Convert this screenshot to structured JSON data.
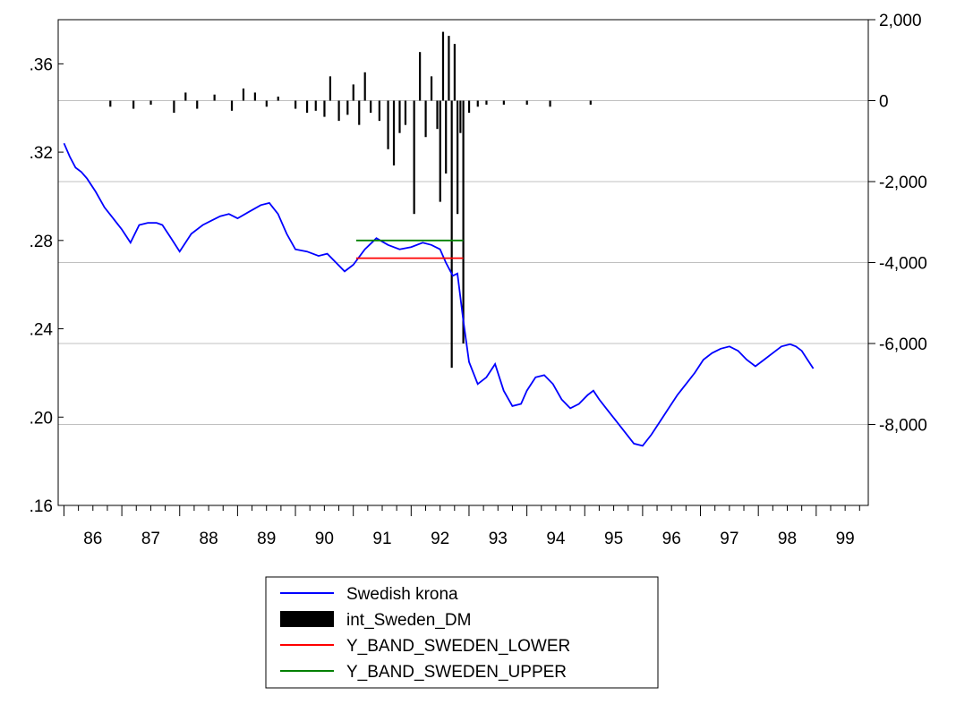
{
  "chart_data": {
    "type": "line",
    "title": "",
    "xlabel": "",
    "x_tick_labels": [
      "86",
      "87",
      "88",
      "89",
      "90",
      "91",
      "92",
      "93",
      "94",
      "95",
      "96",
      "97",
      "98",
      "99"
    ],
    "x_range": [
      1985.9,
      1999.9
    ],
    "left_axis": {
      "label": "",
      "range": [
        0.16,
        0.38
      ],
      "tick_labels": [
        ".16",
        ".20",
        ".24",
        ".28",
        ".32",
        ".36"
      ],
      "tick_values": [
        0.16,
        0.2,
        0.24,
        0.28,
        0.32,
        0.36
      ]
    },
    "right_axis": {
      "label": "",
      "range": [
        -10000,
        2000
      ],
      "tick_labels": [
        "2,000",
        "0",
        "-2,000",
        "-4,000",
        "-6,000",
        "-8,000"
      ],
      "tick_values": [
        2000,
        0,
        -2000,
        -4000,
        -6000,
        -8000
      ]
    },
    "grid": "horizontal",
    "series": [
      {
        "name": "Swedish krona",
        "type": "line",
        "axis": "left",
        "color": "#0000ff",
        "x": [
          1986.0,
          1986.1,
          1986.2,
          1986.3,
          1986.4,
          1986.55,
          1986.7,
          1986.85,
          1987.0,
          1987.15,
          1987.3,
          1987.45,
          1987.6,
          1987.7,
          1987.85,
          1988.0,
          1988.2,
          1988.4,
          1988.55,
          1988.7,
          1988.85,
          1989.0,
          1989.2,
          1989.4,
          1989.55,
          1989.7,
          1989.85,
          1990.0,
          1990.2,
          1990.4,
          1990.55,
          1990.7,
          1990.85,
          1991.0,
          1991.2,
          1991.4,
          1991.6,
          1991.8,
          1992.0,
          1992.2,
          1992.35,
          1992.5,
          1992.6,
          1992.68,
          1992.72,
          1992.8,
          1992.9,
          1993.0,
          1993.15,
          1993.3,
          1993.45,
          1993.6,
          1993.75,
          1993.9,
          1994.0,
          1994.15,
          1994.3,
          1994.45,
          1994.6,
          1994.75,
          1994.9,
          1995.05,
          1995.15,
          1995.25,
          1995.4,
          1995.55,
          1995.7,
          1995.85,
          1996.0,
          1996.15,
          1996.3,
          1996.45,
          1996.6,
          1996.75,
          1996.9,
          1997.05,
          1997.2,
          1997.35,
          1997.5,
          1997.65,
          1997.8,
          1997.95,
          1998.1,
          1998.25,
          1998.4,
          1998.55,
          1998.65,
          1998.75,
          1998.85,
          1998.95
        ],
        "values": [
          0.324,
          0.318,
          0.313,
          0.311,
          0.308,
          0.302,
          0.295,
          0.29,
          0.285,
          0.279,
          0.287,
          0.288,
          0.288,
          0.287,
          0.281,
          0.275,
          0.283,
          0.287,
          0.289,
          0.291,
          0.292,
          0.29,
          0.293,
          0.296,
          0.297,
          0.292,
          0.283,
          0.276,
          0.275,
          0.273,
          0.274,
          0.27,
          0.266,
          0.269,
          0.276,
          0.281,
          0.278,
          0.276,
          0.277,
          0.279,
          0.278,
          0.276,
          0.27,
          0.266,
          0.264,
          0.265,
          0.244,
          0.225,
          0.215,
          0.218,
          0.224,
          0.212,
          0.205,
          0.206,
          0.212,
          0.218,
          0.219,
          0.215,
          0.208,
          0.204,
          0.206,
          0.21,
          0.212,
          0.208,
          0.203,
          0.198,
          0.193,
          0.188,
          0.187,
          0.192,
          0.198,
          0.204,
          0.21,
          0.215,
          0.22,
          0.226,
          0.229,
          0.231,
          0.232,
          0.23,
          0.226,
          0.223,
          0.226,
          0.229,
          0.232,
          0.233,
          0.232,
          0.23,
          0.226,
          0.222
        ]
      },
      {
        "name": "int_Sweden_DM",
        "type": "bar",
        "axis": "right",
        "color": "#000000",
        "x": [
          1986.8,
          1987.2,
          1987.5,
          1987.9,
          1988.1,
          1988.3,
          1988.6,
          1988.9,
          1989.1,
          1989.3,
          1989.5,
          1989.7,
          1990.0,
          1990.2,
          1990.35,
          1990.5,
          1990.6,
          1990.75,
          1990.9,
          1991.0,
          1991.1,
          1991.2,
          1991.3,
          1991.45,
          1991.6,
          1991.7,
          1991.8,
          1991.9,
          1992.05,
          1992.15,
          1992.25,
          1992.35,
          1992.45,
          1992.5,
          1992.55,
          1992.6,
          1992.65,
          1992.7,
          1992.75,
          1992.8,
          1992.85,
          1992.9,
          1993.0,
          1993.15,
          1993.3,
          1993.6,
          1994.0,
          1994.4,
          1995.1
        ],
        "values": [
          -150,
          -200,
          -100,
          -300,
          200,
          -200,
          150,
          -250,
          300,
          200,
          -150,
          100,
          -200,
          -300,
          -250,
          -400,
          600,
          -500,
          -350,
          400,
          -600,
          700,
          -300,
          -500,
          -1200,
          -1600,
          -800,
          -600,
          -2800,
          1200,
          -900,
          600,
          -700,
          -2500,
          1700,
          -1800,
          1600,
          -6600,
          1400,
          -2800,
          -800,
          -6000,
          -300,
          -150,
          -100,
          -100,
          -100,
          -150,
          -100
        ]
      },
      {
        "name": "Y_BAND_SWEDEN_LOWER",
        "type": "line",
        "axis": "left",
        "color": "#ff0000",
        "x": [
          1991.05,
          1992.9
        ],
        "values": [
          0.272,
          0.272
        ]
      },
      {
        "name": "Y_BAND_SWEDEN_UPPER",
        "type": "line",
        "axis": "left",
        "color": "#008000",
        "x": [
          1991.05,
          1992.9
        ],
        "values": [
          0.28,
          0.28
        ]
      }
    ],
    "legend": {
      "position": "bottom-center",
      "entries": [
        "Swedish krona",
        "int_Sweden_DM",
        "Y_BAND_SWEDEN_LOWER",
        "Y_BAND_SWEDEN_UPPER"
      ]
    }
  }
}
